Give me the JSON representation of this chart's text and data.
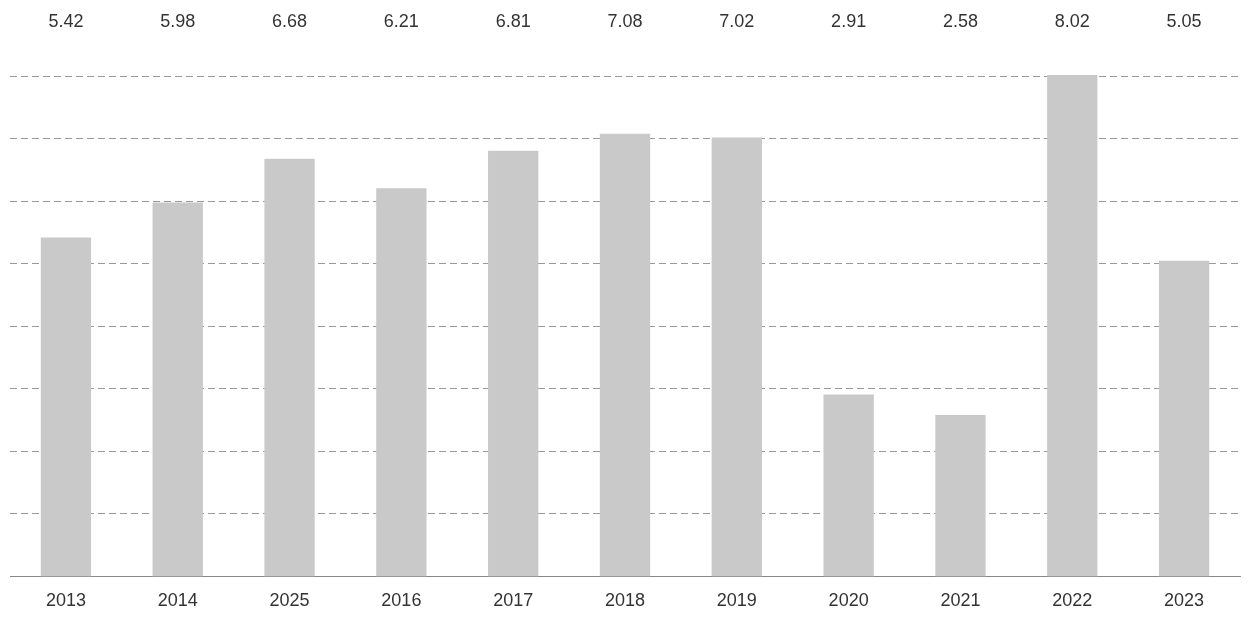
{
  "chart_data": {
    "type": "bar",
    "categories": [
      "2013",
      "2014",
      "2025",
      "2016",
      "2017",
      "2018",
      "2019",
      "2020",
      "2021",
      "2022",
      "2023"
    ],
    "values": [
      5.42,
      5.98,
      6.68,
      6.21,
      6.81,
      7.08,
      7.02,
      2.91,
      2.58,
      8.02,
      5.05
    ],
    "color": "#c9c9c9",
    "yticks": [
      {
        "value": 1,
        "label": null
      },
      {
        "value": 2,
        "label": null
      },
      {
        "value": 3,
        "label": null
      },
      {
        "value": 4,
        "label": null
      },
      {
        "value": 5,
        "label": null
      },
      {
        "value": 6,
        "label": null
      },
      {
        "value": 7,
        "label": null
      },
      {
        "value": 8,
        "label": null
      }
    ],
    "tick_labels": "x",
    "grid": "y",
    "data_labels": true,
    "legend": false
  }
}
